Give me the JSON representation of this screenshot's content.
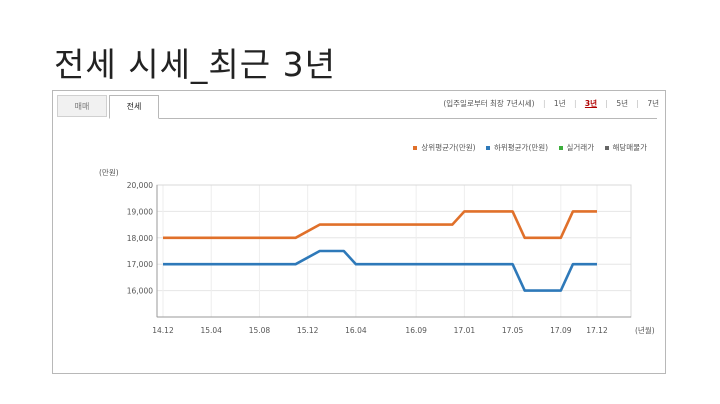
{
  "slide": {
    "title": "전세 시세_최근 3년"
  },
  "tabs": [
    {
      "label": "매매"
    },
    {
      "label": "전세"
    }
  ],
  "period": {
    "note": "(입주일로부터 최장 7년시세)",
    "options": [
      {
        "label": "1년"
      },
      {
        "label": "3년"
      },
      {
        "label": "5년"
      },
      {
        "label": "7년"
      }
    ],
    "selected": "3년"
  },
  "legend": [
    {
      "label": "상위평균가(만원)",
      "color": "#e0702a"
    },
    {
      "label": "하위평균가(만원)",
      "color": "#2e79b9"
    },
    {
      "label": "실거래가",
      "color": "#3cae3c"
    },
    {
      "label": "해당매물가",
      "color": "#666666"
    }
  ],
  "chart_data": {
    "type": "line",
    "y_unit_label": "(만원)",
    "x_unit_label": "(년월)",
    "ylim": [
      15000,
      20000
    ],
    "y_ticks": [
      {
        "value": 16000,
        "label": "16,000"
      },
      {
        "value": 17000,
        "label": "17,000"
      },
      {
        "value": 18000,
        "label": "18,000"
      },
      {
        "value": 19000,
        "label": "19,000"
      },
      {
        "value": 20000,
        "label": "20,000"
      }
    ],
    "x_ticks": [
      "14.12",
      "15.04",
      "15.08",
      "15.12",
      "16.04",
      "16.09",
      "17.01",
      "17.05",
      "17.09",
      "17.12"
    ],
    "grid": true,
    "series": [
      {
        "name": "상위평균가(만원)",
        "color": "#e0702a",
        "points": [
          [
            "2014-12",
            18000
          ],
          [
            "2015-11",
            18000
          ],
          [
            "2016-01",
            18500
          ],
          [
            "2016-12",
            18500
          ],
          [
            "2017-01",
            19000
          ],
          [
            "2017-05",
            19000
          ],
          [
            "2017-06",
            18000
          ],
          [
            "2017-09",
            18000
          ],
          [
            "2017-10",
            19000
          ],
          [
            "2017-12",
            19000
          ]
        ]
      },
      {
        "name": "하위평균가(만원)",
        "color": "#2e79b9",
        "points": [
          [
            "2014-12",
            17000
          ],
          [
            "2015-11",
            17000
          ],
          [
            "2016-01",
            17500
          ],
          [
            "2016-03",
            17500
          ],
          [
            "2016-04",
            17000
          ],
          [
            "2017-05",
            17000
          ],
          [
            "2017-06",
            16000
          ],
          [
            "2017-09",
            16000
          ],
          [
            "2017-10",
            17000
          ],
          [
            "2017-12",
            17000
          ]
        ]
      }
    ]
  }
}
